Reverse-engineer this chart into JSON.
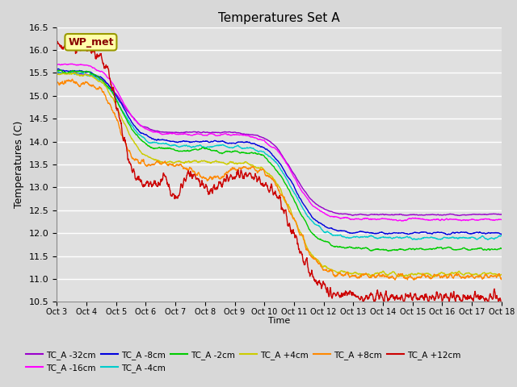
{
  "title": "Temperatures Set A",
  "xlabel": "Time",
  "ylabel": "Temperatures (C)",
  "ylim": [
    10.5,
    16.5
  ],
  "series_order": [
    "TC_A -32cm",
    "TC_A -16cm",
    "TC_A -8cm",
    "TC_A -4cm",
    "TC_A -2cm",
    "TC_A +4cm",
    "TC_A +8cm",
    "TC_A +12cm"
  ],
  "colors": [
    "#9900cc",
    "#ff00ff",
    "#0000dd",
    "#00cccc",
    "#00cc00",
    "#cccc00",
    "#ff8800",
    "#cc0000"
  ],
  "xtick_labels": [
    "Oct 3",
    "Oct 4",
    "Oct 5",
    "Oct 6",
    "Oct 7",
    "Oct 8",
    "Oct 9",
    "Oct 10",
    "Oct 11",
    "Oct 12",
    "Oct 13",
    "Oct 14",
    "Oct 15",
    "Oct 16",
    "Oct 17",
    "Oct 18"
  ],
  "annotation_text": "WP_met",
  "plot_bg": "#e0e0e0",
  "fig_bg": "#d8d8d8",
  "grid_color": "white"
}
